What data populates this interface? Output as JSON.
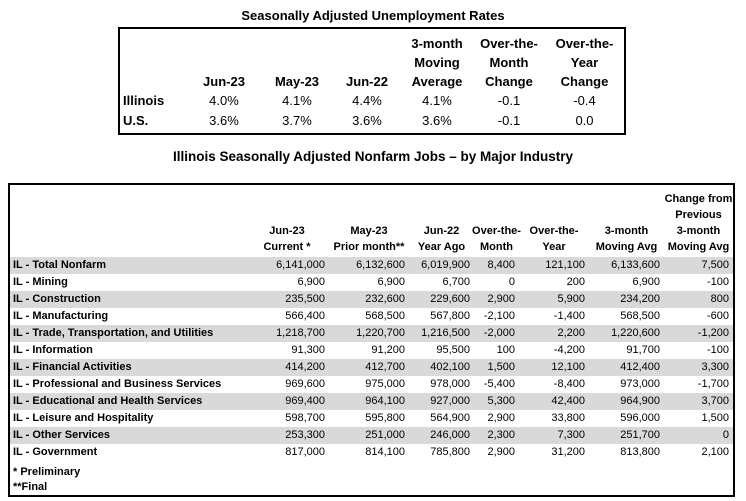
{
  "unemployment_table": {
    "title": "Seasonally Adjusted Unemployment Rates",
    "header_lines": [
      [
        "",
        "",
        "",
        "",
        "3-month",
        "Over-the-",
        "Over-the-"
      ],
      [
        "",
        "",
        "",
        "",
        "Moving",
        "Month",
        "Year"
      ],
      [
        "",
        "Jun-23",
        "May-23",
        "Jun-22",
        "Average",
        "Change",
        "Change"
      ]
    ],
    "rows": [
      {
        "label": "Illinois",
        "values": [
          "4.0%",
          "4.1%",
          "4.4%",
          "4.1%",
          "-0.1",
          "-0.4"
        ]
      },
      {
        "label": "U.S.",
        "values": [
          "3.6%",
          "3.7%",
          "3.6%",
          "3.6%",
          "-0.1",
          "0.0"
        ]
      }
    ]
  },
  "jobs_table": {
    "title": "Illinois Seasonally Adjusted Nonfarm Jobs – by Major Industry",
    "columns": [
      {
        "lines": [
          "Jun-23",
          "Current *"
        ]
      },
      {
        "lines": [
          "May-23",
          "Prior month**"
        ]
      },
      {
        "lines": [
          "Jun-22",
          "Year Ago"
        ]
      },
      {
        "lines": [
          "Over-the-",
          "Month"
        ]
      },
      {
        "lines": [
          "Over-the-",
          "Year"
        ]
      },
      {
        "lines": [
          "3-month",
          "Moving Avg"
        ]
      },
      {
        "lines": [
          "Change from",
          "Previous",
          "3-month",
          "Moving Avg"
        ]
      }
    ],
    "rows": [
      {
        "label": "IL - Total Nonfarm",
        "values": [
          "6,141,000",
          "6,132,600",
          "6,019,900",
          "8,400",
          "121,100",
          "6,133,600",
          "7,500"
        ]
      },
      {
        "label": "IL - Mining",
        "values": [
          "6,900",
          "6,900",
          "6,700",
          "0",
          "200",
          "6,900",
          "-100"
        ]
      },
      {
        "label": "IL - Construction",
        "values": [
          "235,500",
          "232,600",
          "229,600",
          "2,900",
          "5,900",
          "234,200",
          "800"
        ]
      },
      {
        "label": "IL - Manufacturing",
        "values": [
          "566,400",
          "568,500",
          "567,800",
          "-2,100",
          "-1,400",
          "568,500",
          "-600"
        ]
      },
      {
        "label": "IL - Trade, Transportation, and Utilities",
        "values": [
          "1,218,700",
          "1,220,700",
          "1,216,500",
          "-2,000",
          "2,200",
          "1,220,600",
          "-1,200"
        ]
      },
      {
        "label": "IL - Information",
        "values": [
          "91,300",
          "91,200",
          "95,500",
          "100",
          "-4,200",
          "91,700",
          "-100"
        ]
      },
      {
        "label": "IL - Financial Activities",
        "values": [
          "414,200",
          "412,700",
          "402,100",
          "1,500",
          "12,100",
          "412,400",
          "3,300"
        ]
      },
      {
        "label": "IL - Professional and Business Services",
        "values": [
          "969,600",
          "975,000",
          "978,000",
          "-5,400",
          "-8,400",
          "973,000",
          "-1,700"
        ]
      },
      {
        "label": "IL - Educational and Health Services",
        "values": [
          "969,400",
          "964,100",
          "927,000",
          "5,300",
          "42,400",
          "964,900",
          "3,700"
        ]
      },
      {
        "label": "IL - Leisure and Hospitality",
        "values": [
          "598,700",
          "595,800",
          "564,900",
          "2,900",
          "33,800",
          "596,000",
          "1,500"
        ]
      },
      {
        "label": "IL - Other Services",
        "values": [
          "253,300",
          "251,000",
          "246,000",
          "2,300",
          "7,300",
          "251,700",
          "0"
        ]
      },
      {
        "label": "IL - Government",
        "values": [
          "817,000",
          "814,100",
          "785,800",
          "2,900",
          "31,200",
          "813,800",
          "2,100"
        ]
      }
    ],
    "footnotes": [
      "* Preliminary",
      "**Final"
    ]
  }
}
